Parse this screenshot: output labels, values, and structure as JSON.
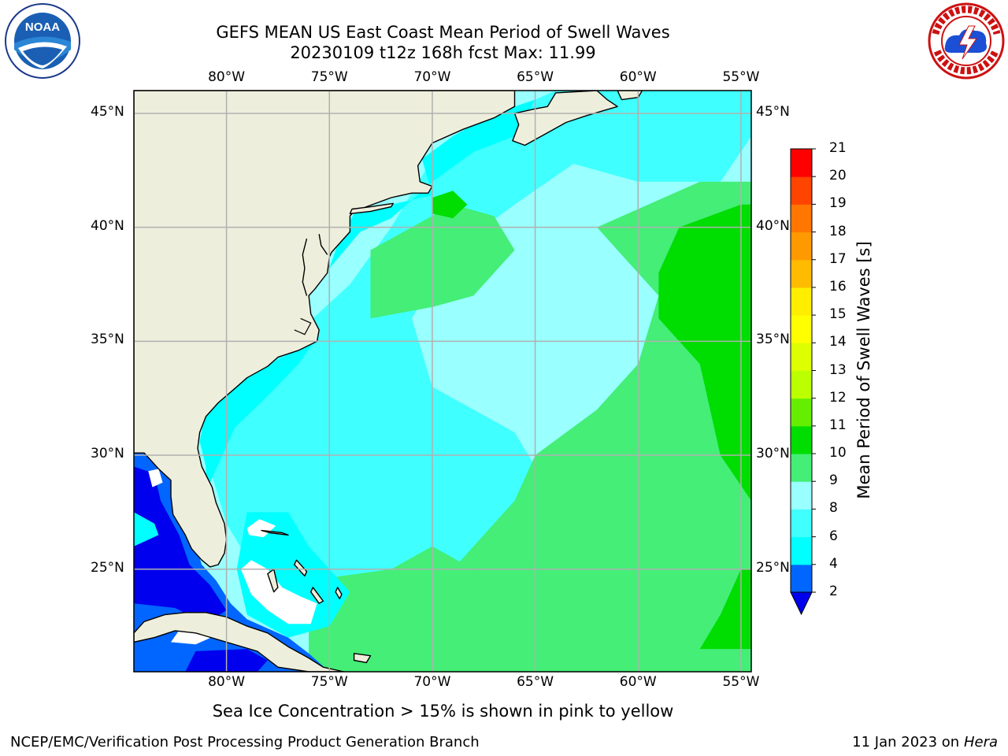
{
  "header": {
    "title_line1": "GEFS MEAN US East Coast Mean Period of Swell Waves",
    "title_line2": "20230109 t12z 168h fcst   Max: 11.99"
  },
  "logos": {
    "noaa": {
      "text": "NOAA",
      "icon": "noaa-logo-icon"
    },
    "nws": {
      "icon": "national-weather-service-logo-icon"
    }
  },
  "map": {
    "lon_labels": [
      "80°W",
      "75°W",
      "70°W",
      "65°W",
      "60°W",
      "55°W"
    ],
    "lat_labels": [
      "45°N",
      "40°N",
      "35°N",
      "30°N",
      "25°N"
    ],
    "lon_range": [
      -84.5,
      -54.5
    ],
    "lat_range": [
      20.5,
      46.0
    ],
    "grid": true,
    "land_color": "#eeeedc",
    "no_data_color": "#ffffff",
    "coastline_color": "#000000",
    "gridline_color": "#b0b0b0"
  },
  "colorbar": {
    "title": "Mean Period of Swell Waves [s]",
    "levels": [
      2,
      4,
      6,
      8,
      9,
      10,
      11,
      12,
      13,
      14,
      15,
      16,
      17,
      18,
      19,
      20,
      21
    ],
    "colors": [
      "#0066ff",
      "#00ffff",
      "#40ffff",
      "#99ffff",
      "#44ee77",
      "#00dd00",
      "#66ee00",
      "#bbff00",
      "#ddff00",
      "#ffff00",
      "#ffee00",
      "#ffbb00",
      "#ff9900",
      "#ff7700",
      "#ff4400",
      "#ff0000"
    ],
    "extend_min_color": "#0000ee",
    "extend": "min"
  },
  "notes": {
    "sea_ice": "Sea Ice Concentration > 15% is shown in pink to yellow"
  },
  "footer": {
    "left": "NCEP/EMC/Verification Post Processing Product Generation Branch",
    "date": "11 Jan 2023 on ",
    "host": "Hera"
  }
}
